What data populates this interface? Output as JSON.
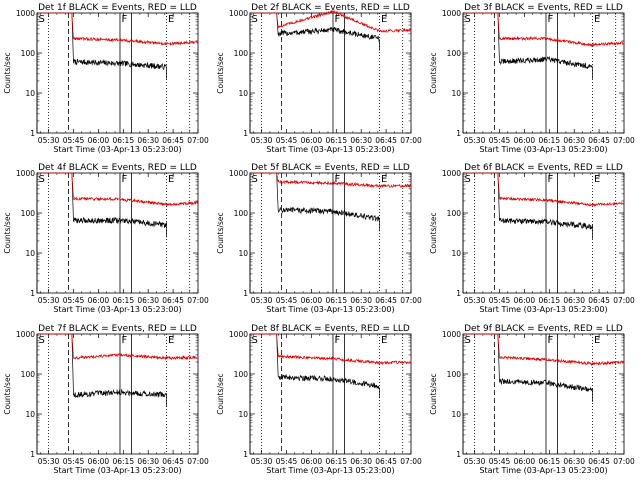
{
  "chart_data": [
    {
      "type": "line",
      "title": "Det 1f BLACK = Events, RED = LLD",
      "xlabel": "Start Time (03-Apr-13 05:23:00)",
      "ylabel": "Counts/sec",
      "x_ticks": [
        "05:30",
        "05:45",
        "06:00",
        "06:15",
        "06:30",
        "06:45",
        "07:00"
      ],
      "y_ticks": [
        "1",
        "10",
        "100",
        "1000"
      ],
      "yscale": "log",
      "ylim": [
        1,
        1000
      ],
      "xlim": [
        "05:23",
        "07:00"
      ],
      "markers": {
        "S": "05:23",
        "F": "06:13",
        "E": "06:41"
      },
      "series": [
        {
          "name": "BLACK",
          "color": "#000000",
          "x": [
            "05:45",
            "06:13",
            "06:41"
          ],
          "y": [
            60,
            55,
            45
          ]
        },
        {
          "name": "RED",
          "color": "#dd0000",
          "x": [
            "05:45",
            "06:13",
            "06:41",
            "07:00"
          ],
          "y": [
            230,
            210,
            170,
            185
          ]
        }
      ]
    },
    {
      "type": "line",
      "title": "Det 2f BLACK = Events, RED = LLD",
      "xlabel": "Start Time (03-Apr-13 05:23:00)",
      "ylabel": "Counts/sec",
      "x_ticks": [
        "05:30",
        "05:45",
        "06:00",
        "06:15",
        "06:30",
        "06:45",
        "07:00"
      ],
      "y_ticks": [
        "1",
        "10",
        "100",
        "1000"
      ],
      "yscale": "log",
      "ylim": [
        1,
        1000
      ],
      "xlim": [
        "05:23",
        "07:00"
      ],
      "markers": {
        "S": "05:23",
        "F": "06:13",
        "E": "06:41"
      },
      "series": [
        {
          "name": "BLACK",
          "color": "#000000",
          "x": [
            "05:40",
            "06:13",
            "06:41"
          ],
          "y": [
            300,
            380,
            230
          ]
        },
        {
          "name": "RED",
          "color": "#dd0000",
          "x": [
            "05:40",
            "06:13",
            "06:41",
            "07:00"
          ],
          "y": [
            450,
            1100,
            350,
            380
          ]
        }
      ]
    },
    {
      "type": "line",
      "title": "Det 3f BLACK = Events, RED = LLD",
      "xlabel": "Start Time (03-Apr-13 05:23:00)",
      "ylabel": "Counts/sec",
      "x_ticks": [
        "05:30",
        "05:45",
        "06:00",
        "06:15",
        "06:30",
        "06:45",
        "07:00"
      ],
      "y_ticks": [
        "1",
        "10",
        "100",
        "1000"
      ],
      "yscale": "log",
      "ylim": [
        1,
        1000
      ],
      "xlim": [
        "05:23",
        "07:00"
      ],
      "markers": {
        "S": "05:23",
        "F": "06:13",
        "E": "06:41"
      },
      "series": [
        {
          "name": "BLACK",
          "color": "#000000",
          "x": [
            "05:45",
            "06:13",
            "06:41"
          ],
          "y": [
            60,
            70,
            45
          ]
        },
        {
          "name": "RED",
          "color": "#dd0000",
          "x": [
            "05:45",
            "06:13",
            "06:41",
            "07:00"
          ],
          "y": [
            230,
            230,
            160,
            180
          ]
        }
      ]
    },
    {
      "type": "line",
      "title": "Det 4f BLACK = Events, RED = LLD",
      "xlabel": "Start Time (03-Apr-13 05:23:00)",
      "ylabel": "Counts/sec",
      "x_ticks": [
        "05:30",
        "05:45",
        "06:00",
        "06:15",
        "06:30",
        "06:45",
        "07:00"
      ],
      "y_ticks": [
        "1",
        "10",
        "100",
        "1000"
      ],
      "yscale": "log",
      "ylim": [
        1,
        1000
      ],
      "xlim": [
        "05:23",
        "07:00"
      ],
      "markers": {
        "S": "05:23",
        "F": "06:13",
        "E": "06:41"
      },
      "series": [
        {
          "name": "BLACK",
          "color": "#000000",
          "x": [
            "05:45",
            "06:13",
            "06:41"
          ],
          "y": [
            65,
            65,
            50
          ]
        },
        {
          "name": "RED",
          "color": "#dd0000",
          "x": [
            "05:45",
            "06:13",
            "06:41",
            "07:00"
          ],
          "y": [
            230,
            220,
            165,
            180
          ]
        }
      ]
    },
    {
      "type": "line",
      "title": "Det 5f BLACK = Events, RED = LLD",
      "xlabel": "Start Time (03-Apr-13 05:23:00)",
      "ylabel": "Counts/sec",
      "x_ticks": [
        "05:30",
        "05:45",
        "06:00",
        "06:15",
        "06:30",
        "06:45",
        "07:00"
      ],
      "y_ticks": [
        "1",
        "10",
        "100",
        "1000"
      ],
      "yscale": "log",
      "ylim": [
        1,
        1000
      ],
      "xlim": [
        "05:23",
        "07:00"
      ],
      "markers": {
        "S": "05:23",
        "F": "06:13",
        "E": "06:41"
      },
      "series": [
        {
          "name": "BLACK",
          "color": "#000000",
          "x": [
            "05:40",
            "06:13",
            "06:41"
          ],
          "y": [
            120,
            110,
            70
          ]
        },
        {
          "name": "RED",
          "color": "#dd0000",
          "x": [
            "05:40",
            "06:13",
            "06:41",
            "07:00"
          ],
          "y": [
            600,
            560,
            470,
            480
          ]
        }
      ]
    },
    {
      "type": "line",
      "title": "Det 6f BLACK = Events, RED = LLD",
      "xlabel": "Start Time (03-Apr-13 05:23:00)",
      "ylabel": "Counts/sec",
      "x_ticks": [
        "05:30",
        "05:45",
        "06:00",
        "06:15",
        "06:30",
        "06:45",
        "07:00"
      ],
      "y_ticks": [
        "1",
        "10",
        "100",
        "1000"
      ],
      "yscale": "log",
      "ylim": [
        1,
        1000
      ],
      "xlim": [
        "05:23",
        "07:00"
      ],
      "markers": {
        "S": "05:23",
        "F": "06:13",
        "E": "06:41"
      },
      "series": [
        {
          "name": "BLACK",
          "color": "#000000",
          "x": [
            "05:45",
            "06:13",
            "06:41"
          ],
          "y": [
            65,
            60,
            45
          ]
        },
        {
          "name": "RED",
          "color": "#dd0000",
          "x": [
            "05:45",
            "06:13",
            "06:41",
            "07:00"
          ],
          "y": [
            230,
            210,
            160,
            175
          ]
        }
      ]
    },
    {
      "type": "line",
      "title": "Det 7f BLACK = Events, RED = LLD",
      "xlabel": "Start Time (03-Apr-13 05:23:00)",
      "ylabel": "Counts/sec",
      "x_ticks": [
        "05:30",
        "05:45",
        "06:00",
        "06:15",
        "06:30",
        "06:45",
        "07:00"
      ],
      "y_ticks": [
        "1",
        "10",
        "100",
        "1000"
      ],
      "yscale": "log",
      "ylim": [
        1,
        1000
      ],
      "xlim": [
        "05:23",
        "07:00"
      ],
      "markers": {
        "S": "05:23",
        "F": "06:13",
        "E": "06:41"
      },
      "series": [
        {
          "name": "BLACK",
          "color": "#000000",
          "x": [
            "05:45",
            "06:13",
            "06:41"
          ],
          "y": [
            30,
            35,
            30
          ]
        },
        {
          "name": "RED",
          "color": "#dd0000",
          "x": [
            "05:45",
            "06:13",
            "06:41",
            "07:00"
          ],
          "y": [
            250,
            300,
            250,
            260
          ]
        }
      ]
    },
    {
      "type": "line",
      "title": "Det 8f BLACK = Events, RED = LLD",
      "xlabel": "Start Time (03-Apr-13 05:23:00)",
      "ylabel": "Counts/sec",
      "x_ticks": [
        "05:30",
        "05:45",
        "06:00",
        "06:15",
        "06:30",
        "06:45",
        "07:00"
      ],
      "y_ticks": [
        "1",
        "10",
        "100",
        "1000"
      ],
      "yscale": "log",
      "ylim": [
        1,
        1000
      ],
      "xlim": [
        "05:23",
        "07:00"
      ],
      "markers": {
        "S": "05:23",
        "F": "06:13",
        "E": "06:41"
      },
      "series": [
        {
          "name": "BLACK",
          "color": "#000000",
          "x": [
            "05:40",
            "06:13",
            "06:41"
          ],
          "y": [
            85,
            75,
            50
          ]
        },
        {
          "name": "RED",
          "color": "#dd0000",
          "x": [
            "05:40",
            "06:13",
            "06:41",
            "07:00"
          ],
          "y": [
            280,
            240,
            190,
            200
          ]
        }
      ]
    },
    {
      "type": "line",
      "title": "Det 9f BLACK = Events, RED = LLD",
      "xlabel": "Start Time (03-Apr-13 05:23:00)",
      "ylabel": "Counts/sec",
      "x_ticks": [
        "05:30",
        "05:45",
        "06:00",
        "06:15",
        "06:30",
        "06:45",
        "07:00"
      ],
      "y_ticks": [
        "1",
        "10",
        "100",
        "1000"
      ],
      "yscale": "log",
      "ylim": [
        1,
        1000
      ],
      "xlim": [
        "05:23",
        "07:00"
      ],
      "markers": {
        "S": "05:23",
        "F": "06:13",
        "E": "06:41"
      },
      "series": [
        {
          "name": "BLACK",
          "color": "#000000",
          "x": [
            "05:45",
            "06:13",
            "06:41"
          ],
          "y": [
            65,
            60,
            40
          ]
        },
        {
          "name": "RED",
          "color": "#dd0000",
          "x": [
            "05:45",
            "06:13",
            "06:41",
            "07:00"
          ],
          "y": [
            260,
            230,
            180,
            200
          ]
        }
      ]
    }
  ]
}
